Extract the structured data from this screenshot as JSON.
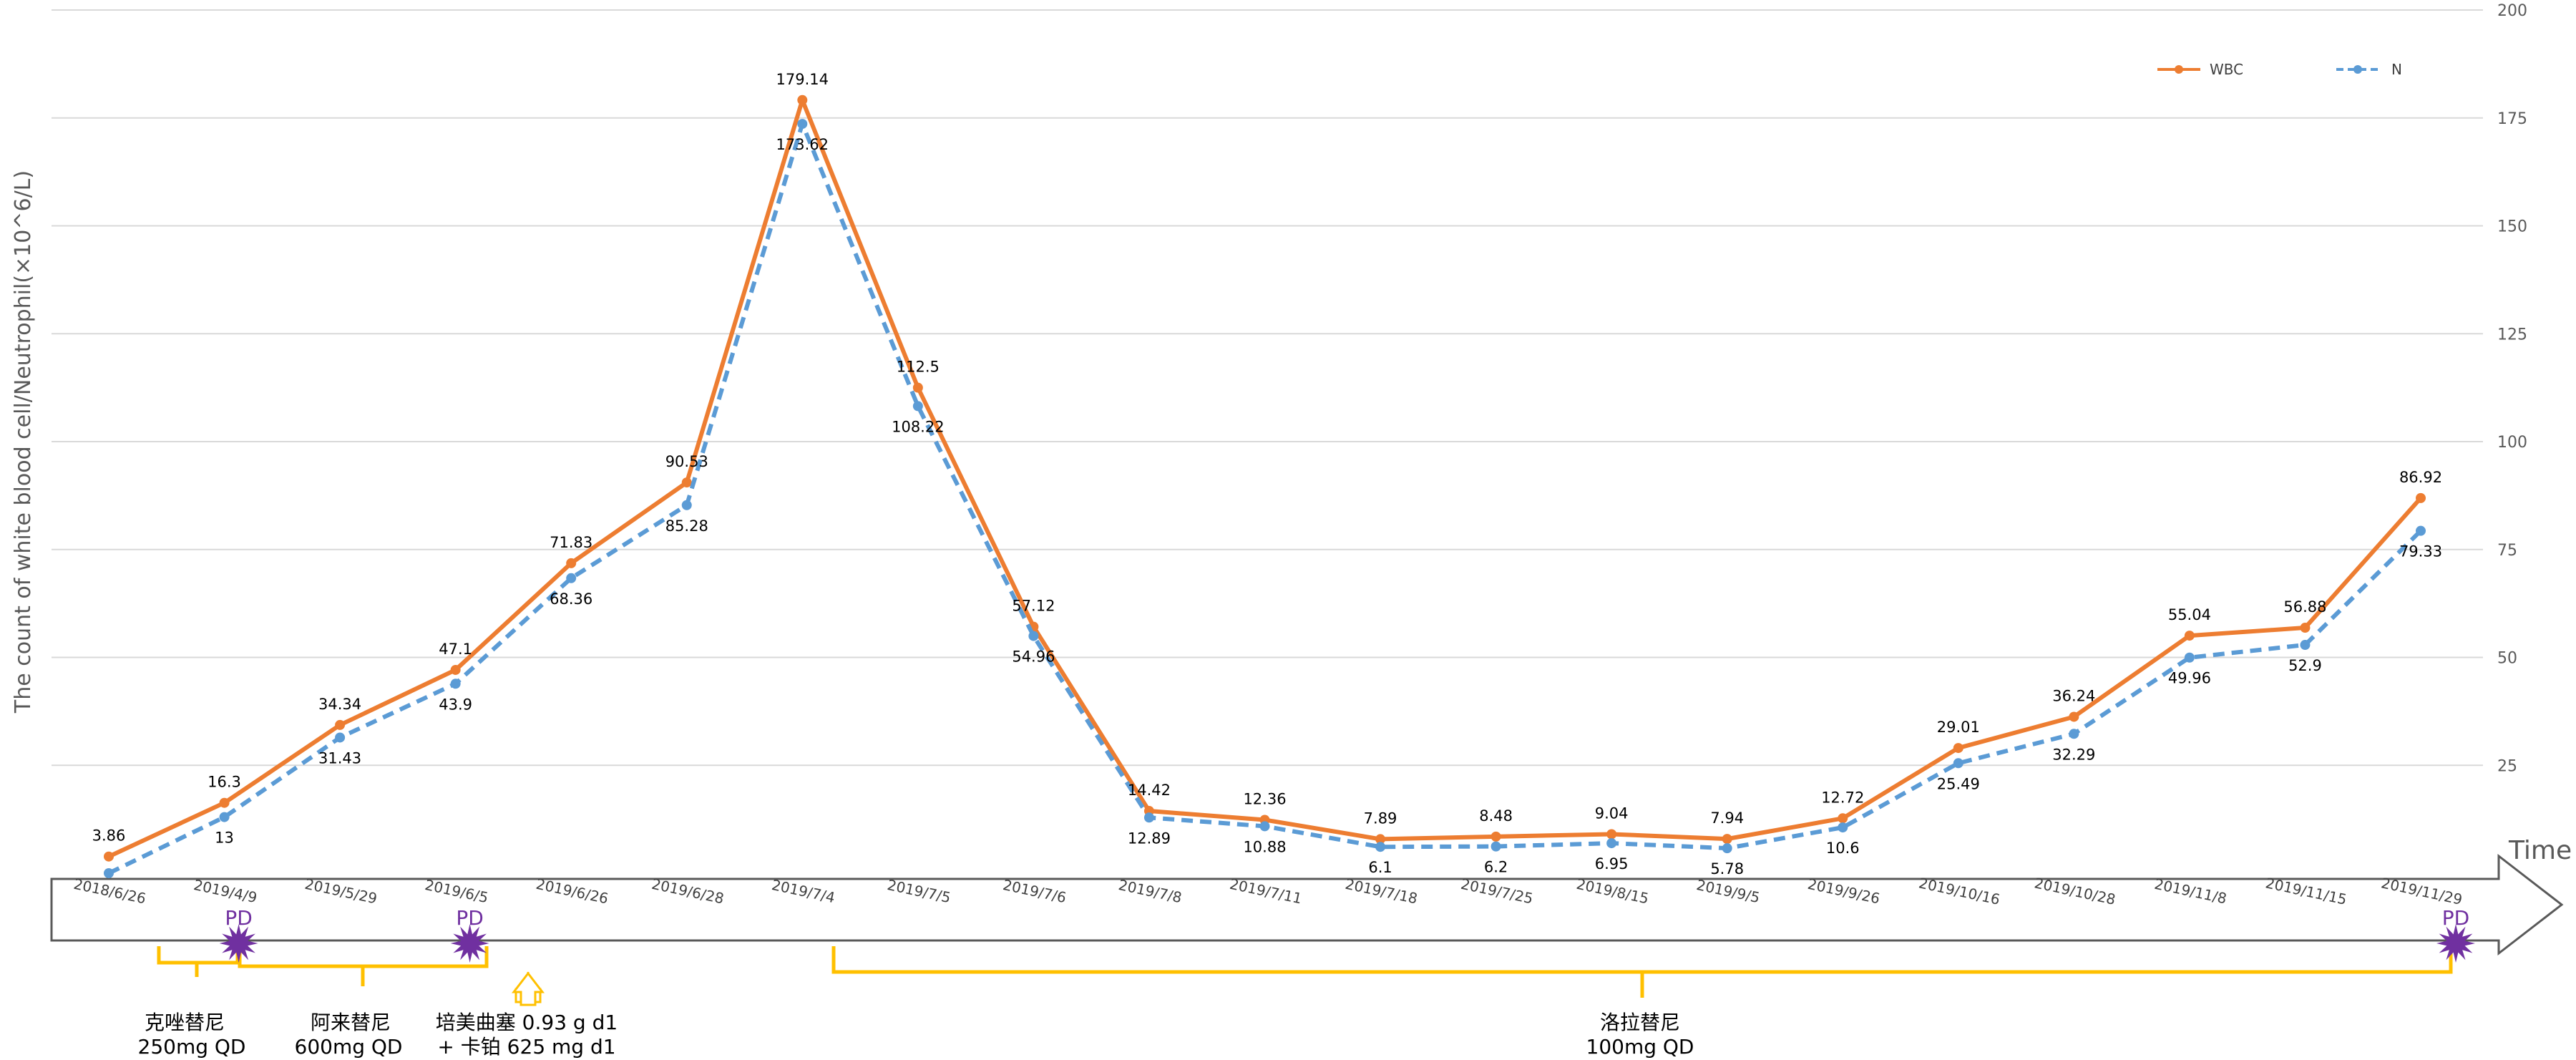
{
  "chart_data": {
    "type": "line",
    "ylabel": "The count of white blood cell/Neutrophil(×10^6/L)",
    "xlabel": "Time",
    "ylim": [
      0,
      200
    ],
    "yticks": [
      0,
      25,
      50,
      75,
      100,
      125,
      150,
      175,
      200
    ],
    "grid": true,
    "legend_position": "top-right",
    "categories": [
      "2018/6/26",
      "2019/4/9",
      "2019/5/29",
      "2019/6/5",
      "2019/6/26",
      "2019/6/28",
      "2019/7/4",
      "2019/7/5",
      "2019/7/6",
      "2019/7/8",
      "2019/7/11",
      "2019/7/18",
      "2019/7/25",
      "2019/8/15",
      "2019/9/5",
      "2019/9/26",
      "2019/10/16",
      "2019/10/28",
      "2019/11/8",
      "2019/11/15",
      "2019/11/29"
    ],
    "series": [
      {
        "name": "WBC",
        "color": "#ED7D31",
        "style": "solid",
        "values": [
          3.86,
          16.3,
          34.34,
          47.1,
          71.83,
          90.53,
          179.14,
          112.5,
          57.12,
          14.42,
          12.36,
          7.89,
          8.48,
          9.04,
          7.94,
          12.72,
          29.01,
          36.24,
          55.04,
          56.88,
          86.92
        ],
        "labels": [
          "3.86",
          "16.3",
          "34.34",
          "47.1",
          "71.83",
          "90.53",
          "179.14",
          "112.5",
          "57.12",
          "14.42",
          "12.36",
          "7.89",
          "8.48",
          "9.04",
          "7.94",
          "12.72",
          "29.01",
          "36.24",
          "55.04",
          "56.88",
          "86.92"
        ]
      },
      {
        "name": "N",
        "color": "#5B9BD5",
        "style": "dashed",
        "values": [
          0,
          13,
          31.43,
          43.9,
          68.36,
          85.28,
          173.62,
          108.22,
          54.96,
          12.89,
          10.88,
          6.1,
          6.2,
          6.95,
          5.78,
          10.6,
          25.49,
          32.29,
          49.96,
          52.9,
          79.33
        ],
        "labels": [
          "",
          "13",
          "31.43",
          "43.9",
          "68.36",
          "85.28",
          "173.62",
          "108.22",
          "54.96",
          "12.89",
          "10.88",
          "6.1",
          "6.2",
          "6.95",
          "5.78",
          "10.6",
          "25.49",
          "32.29",
          "49.96",
          "52.9",
          "79.33"
        ]
      }
    ],
    "progression_markers": [
      {
        "label": "PD",
        "at": "2019/4/9"
      },
      {
        "label": "PD",
        "at": "2019/6/5"
      },
      {
        "label": "PD",
        "at": "2019/11/29"
      }
    ],
    "treatments": [
      {
        "line1": "克唑替尼",
        "line2": "250mg QD"
      },
      {
        "line1": "阿来替尼",
        "line2": "600mg QD"
      },
      {
        "line1": "培美曲塞 0.93 g d1",
        "line2": "+ 卡铂 625 mg d1"
      },
      {
        "line1": "洛拉替尼",
        "line2": "100mg QD"
      }
    ],
    "colors": {
      "bracket": "#FFC000",
      "pd": "#7030A0",
      "grid": "#D9D9D9",
      "axis": "#595959"
    }
  }
}
